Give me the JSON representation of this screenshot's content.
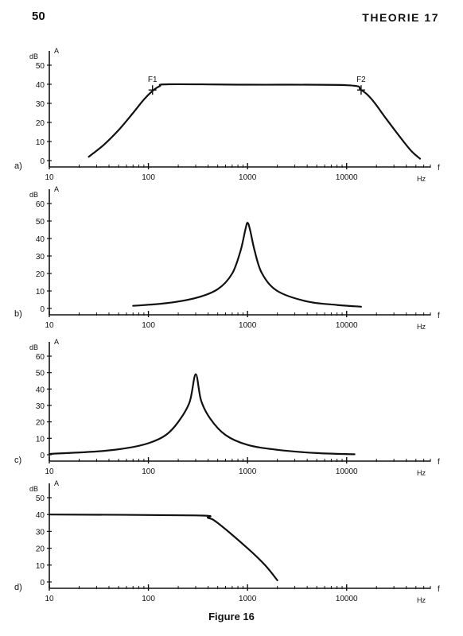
{
  "page": {
    "number": "50",
    "header": "THEORIE 17",
    "caption": "Figure 16"
  },
  "chart_data": [
    {
      "type": "line",
      "panel_label": "a)",
      "ylabel": "A",
      "yunit": "dB",
      "xlabel": "f",
      "xunit": "Hz",
      "xscale": "log",
      "xlim": [
        10,
        70000
      ],
      "x_ticks": [
        10,
        100,
        1000,
        10000
      ],
      "x_tick_labels": [
        "10",
        "100",
        "1000",
        "10000"
      ],
      "ylim": [
        0,
        50
      ],
      "y_ticks": [
        0,
        10,
        20,
        30,
        40,
        50
      ],
      "y_tick_labels": [
        "0",
        "10",
        "20",
        "30",
        "40",
        "50"
      ],
      "grid": false,
      "series": [
        {
          "points": [
            [
              25,
              2
            ],
            [
              35,
              8
            ],
            [
              50,
              16
            ],
            [
              70,
              25
            ],
            [
              90,
              32
            ],
            [
              110,
              36.5
            ],
            [
              130,
              39
            ],
            [
              160,
              40
            ],
            [
              1000,
              39.8
            ],
            [
              10000,
              39.5
            ],
            [
              14000,
              37
            ],
            [
              18000,
              32
            ],
            [
              25000,
              22
            ],
            [
              35000,
              12
            ],
            [
              45000,
              5
            ],
            [
              55000,
              1
            ]
          ]
        }
      ],
      "annotations": [
        {
          "text": "F1",
          "x": 110,
          "y": 37
        },
        {
          "text": "F2",
          "x": 14000,
          "y": 37
        }
      ]
    },
    {
      "type": "line",
      "panel_label": "b)",
      "ylabel": "A",
      "yunit": "dB",
      "xlabel": "f",
      "xunit": "Hz",
      "xscale": "log",
      "xlim": [
        10,
        70000
      ],
      "x_ticks": [
        10,
        100,
        1000,
        10000
      ],
      "x_tick_labels": [
        "10",
        "100",
        "1000",
        "10000"
      ],
      "ylim": [
        0,
        60
      ],
      "y_ticks": [
        0,
        10,
        20,
        30,
        40,
        50,
        60
      ],
      "y_tick_labels": [
        "0",
        "10",
        "20",
        "30",
        "40",
        "50",
        "60"
      ],
      "grid": false,
      "series": [
        {
          "points": [
            [
              70,
              1.5
            ],
            [
              150,
              3
            ],
            [
              300,
              6
            ],
            [
              500,
              11
            ],
            [
              700,
              20
            ],
            [
              850,
              33
            ],
            [
              950,
              45
            ],
            [
              1000,
              49
            ],
            [
              1060,
              45
            ],
            [
              1180,
              33
            ],
            [
              1400,
              20
            ],
            [
              2000,
              10
            ],
            [
              4000,
              4
            ],
            [
              8000,
              2
            ],
            [
              14000,
              1
            ]
          ]
        }
      ]
    },
    {
      "type": "line",
      "panel_label": "c)",
      "ylabel": "A",
      "yunit": "dB",
      "xlabel": "f",
      "xunit": "Hz",
      "xscale": "log",
      "xlim": [
        10,
        70000
      ],
      "x_ticks": [
        10,
        100,
        1000,
        10000
      ],
      "x_tick_labels": [
        "10",
        "100",
        "1000",
        "10000"
      ],
      "ylim": [
        0,
        60
      ],
      "y_ticks": [
        0,
        10,
        20,
        30,
        40,
        50,
        60
      ],
      "y_tick_labels": [
        "0",
        "10",
        "20",
        "30",
        "40",
        "50",
        "60"
      ],
      "grid": false,
      "series": [
        {
          "points": [
            [
              10,
              0.5
            ],
            [
              30,
              2
            ],
            [
              60,
              4
            ],
            [
              100,
              7
            ],
            [
              150,
              12
            ],
            [
              200,
              20
            ],
            [
              260,
              32
            ],
            [
              300,
              49
            ],
            [
              340,
              33
            ],
            [
              420,
              22
            ],
            [
              600,
              12
            ],
            [
              1000,
              6
            ],
            [
              2000,
              3
            ],
            [
              5000,
              1
            ],
            [
              12000,
              0.3
            ]
          ]
        }
      ]
    },
    {
      "type": "line",
      "panel_label": "d)",
      "ylabel": "A",
      "yunit": "dB",
      "xlabel": "f",
      "xunit": "Hz",
      "xscale": "log",
      "xlim": [
        10,
        70000
      ],
      "x_ticks": [
        10,
        100,
        1000,
        10000
      ],
      "x_tick_labels": [
        "10",
        "100",
        "1000",
        "10000"
      ],
      "ylim": [
        0,
        50
      ],
      "y_ticks": [
        0,
        10,
        20,
        30,
        40,
        50
      ],
      "y_tick_labels": [
        "0",
        "10",
        "20",
        "30",
        "40",
        "50"
      ],
      "grid": false,
      "series": [
        {
          "points": [
            [
              10,
              40
            ],
            [
              300,
              39.5
            ],
            [
              400,
              38
            ],
            [
              500,
              35
            ],
            [
              1000,
              20
            ],
            [
              1500,
              10
            ],
            [
              2000,
              1
            ]
          ]
        }
      ]
    }
  ]
}
